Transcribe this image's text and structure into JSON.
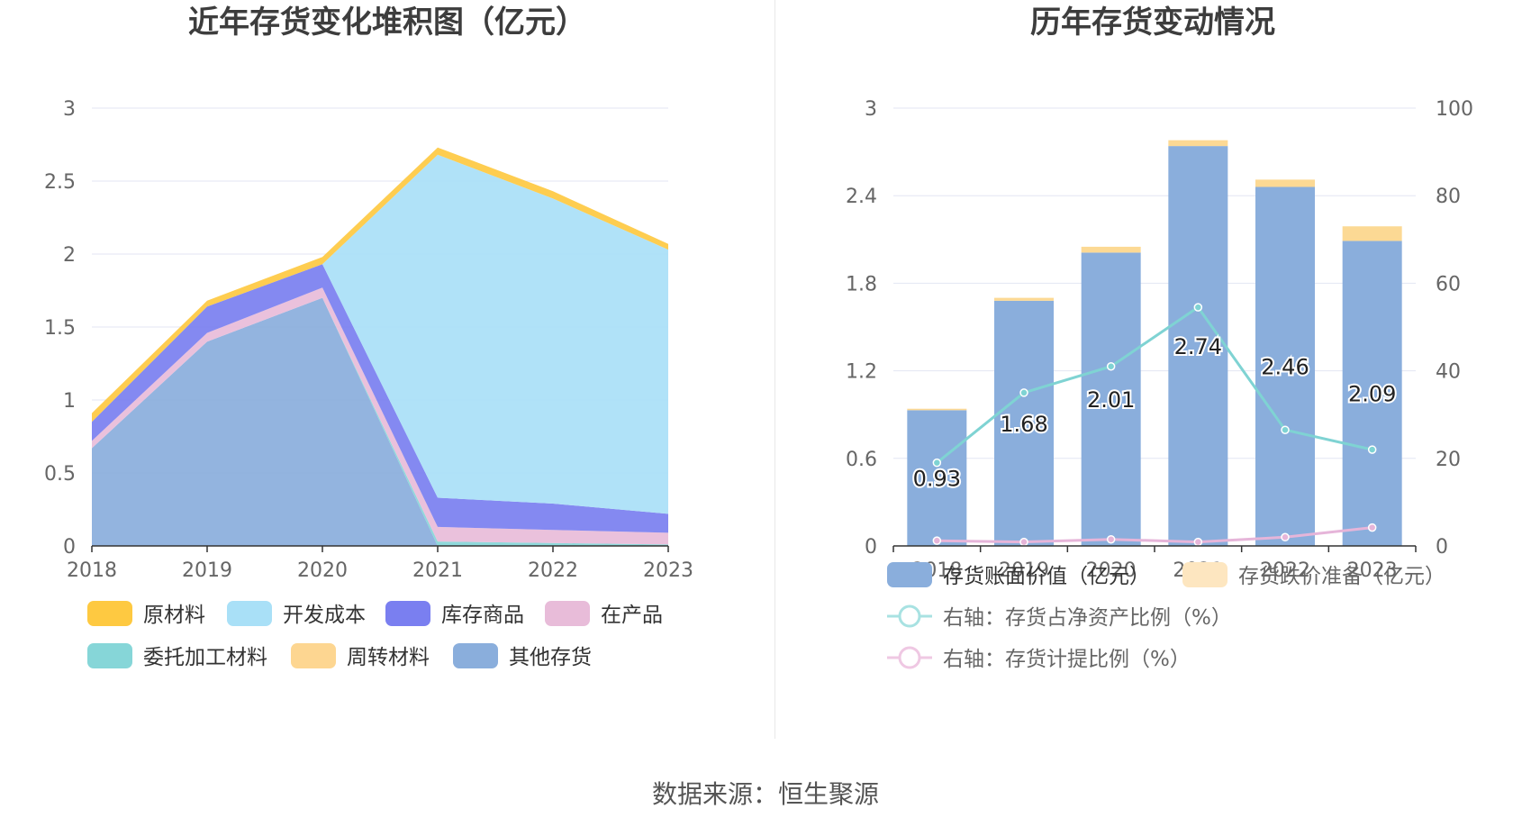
{
  "source_text": "数据来源：恒生聚源",
  "chart_data": [
    {
      "type": "area",
      "stacked": true,
      "title": "近年存货变化堆积图（亿元）",
      "categories": [
        "2018",
        "2019",
        "2020",
        "2021",
        "2022",
        "2023"
      ],
      "ylim": [
        0,
        3
      ],
      "yticks": [
        "0",
        "0.5",
        "1",
        "1.5",
        "2",
        "2.5",
        "3"
      ],
      "grid": true,
      "legend_position": "bottom",
      "series": [
        {
          "name": "其他存货",
          "color": "#8aaedc",
          "values": [
            0.67,
            1.4,
            1.7,
            0.0,
            0.0,
            0.0
          ]
        },
        {
          "name": "委托加工材料",
          "color": "#86d6d8",
          "values": [
            0.0,
            0.0,
            0.0,
            0.03,
            0.02,
            0.01
          ]
        },
        {
          "name": "周转材料",
          "color": "#fdd691",
          "values": [
            0.0,
            0.0,
            0.0,
            0.0,
            0.0,
            0.0
          ]
        },
        {
          "name": "在产品",
          "color": "#e8bcd9",
          "values": [
            0.05,
            0.06,
            0.07,
            0.1,
            0.09,
            0.08
          ]
        },
        {
          "name": "库存商品",
          "color": "#7a7ff0",
          "values": [
            0.13,
            0.18,
            0.16,
            0.2,
            0.18,
            0.13
          ]
        },
        {
          "name": "开发成本",
          "color": "#a9e0f7",
          "values": [
            0.0,
            0.0,
            0.0,
            2.35,
            2.09,
            1.81
          ]
        },
        {
          "name": "原材料",
          "color": "#fec941",
          "values": [
            0.06,
            0.04,
            0.05,
            0.05,
            0.05,
            0.04
          ]
        }
      ],
      "legend": [
        {
          "name": "原材料",
          "color": "#fec941"
        },
        {
          "name": "开发成本",
          "color": "#a9e0f7"
        },
        {
          "name": "库存商品",
          "color": "#7a7ff0"
        },
        {
          "name": "在产品",
          "color": "#e8bcd9"
        },
        {
          "name": "委托加工材料",
          "color": "#86d6d8"
        },
        {
          "name": "周转材料",
          "color": "#fdd691"
        },
        {
          "name": "其他存货",
          "color": "#8aaedc"
        }
      ]
    },
    {
      "type": "bar",
      "stacked": true,
      "title": "历年存货变动情况",
      "categories": [
        "2018",
        "2019",
        "2020",
        "2021",
        "2022",
        "2023"
      ],
      "ylim": [
        0,
        3
      ],
      "yticks": [
        "0",
        "0.6",
        "1.2",
        "1.8",
        "2.4",
        "3"
      ],
      "ylim_right": [
        0,
        100
      ],
      "yticks_right": [
        "0",
        "20",
        "40",
        "60",
        "80",
        "100"
      ],
      "grid": true,
      "legend_position": "bottom",
      "bar_series": [
        {
          "name": "存货账面价值（亿元）",
          "color": "#8aaedc",
          "values": [
            0.93,
            1.68,
            2.01,
            2.74,
            2.46,
            2.09
          ],
          "labels": [
            "0.93",
            "1.68",
            "2.01",
            "2.74",
            "2.46",
            "2.09"
          ]
        },
        {
          "name": "存货跌价准备（亿元）",
          "color": "#fcd994",
          "values": [
            0.01,
            0.02,
            0.04,
            0.04,
            0.05,
            0.1
          ]
        }
      ],
      "line_series": [
        {
          "name": "右轴：存货占净资产比例（%）",
          "color": "#7fd3d3",
          "values": [
            19,
            35,
            41,
            54.5,
            26.5,
            22
          ]
        },
        {
          "name": "右轴：存货计提比例（%）",
          "color": "#e6b5d9",
          "values": [
            1.2,
            0.9,
            1.5,
            0.9,
            2.0,
            4.2
          ]
        }
      ],
      "legend": [
        {
          "name": "存货账面价值（亿元）",
          "color": "#8aaedc",
          "kind": "box"
        },
        {
          "name": "存货跌价准备（亿元）",
          "color": "#fde6c0",
          "kind": "box"
        },
        {
          "name": "右轴：存货占净资产比例（%）",
          "color": "#a8e2e2",
          "kind": "line"
        },
        {
          "name": "右轴：存货计提比例（%）",
          "color": "#efc8e3",
          "kind": "line"
        }
      ]
    }
  ]
}
